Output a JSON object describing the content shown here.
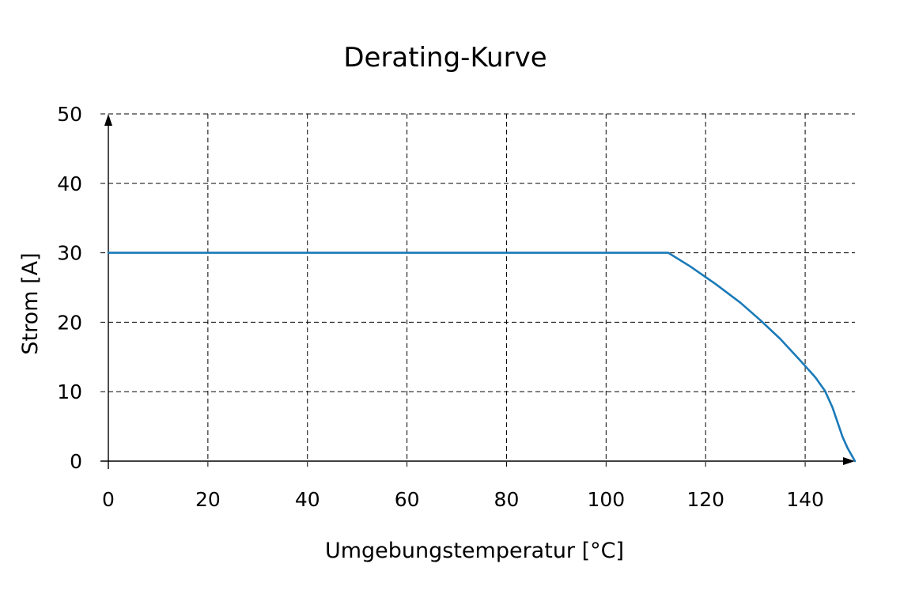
{
  "chart_data": {
    "type": "line",
    "title": "Derating-Kurve",
    "xlabel": "Umgebungstemperatur [°C]",
    "ylabel": "Strom [A]",
    "xlim": [
      0,
      150
    ],
    "ylim": [
      0,
      50
    ],
    "x_ticks": [
      0,
      20,
      40,
      60,
      80,
      100,
      120,
      140
    ],
    "y_ticks": [
      0,
      10,
      20,
      30,
      40,
      50
    ],
    "grid": true,
    "grid_style": "dashed",
    "colors": {
      "line": "#1a7ab8",
      "grid": "#000000",
      "axis": "#000000",
      "text": "#000000"
    },
    "series": [
      {
        "x": [
          0,
          112.5,
          117,
          122,
          127,
          131,
          135,
          139,
          142,
          144,
          145.5,
          146.5,
          147.5,
          148.5,
          150
        ],
        "y": [
          30,
          30,
          28,
          25.5,
          22.8,
          20.3,
          17.6,
          14.5,
          12.1,
          10.1,
          7.7,
          5.6,
          3.5,
          1.9,
          0
        ]
      }
    ]
  }
}
